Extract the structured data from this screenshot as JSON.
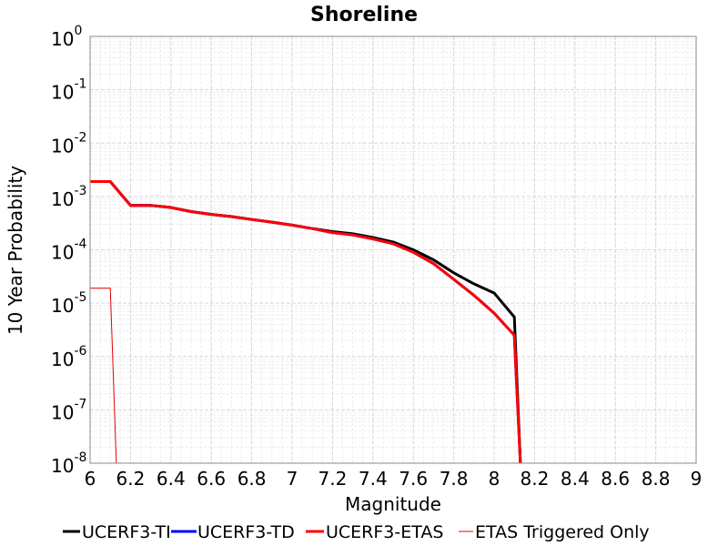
{
  "chart_data": {
    "type": "line",
    "title": "Shoreline",
    "xlabel": "Magnitude",
    "ylabel": "10 Year Probability",
    "xlim": [
      6,
      9
    ],
    "ylim": [
      1e-08,
      1
    ],
    "yscale": "log",
    "grid": true,
    "legend_position": "bottom",
    "x_ticks": [
      "6",
      "6.2",
      "6.4",
      "6.6",
      "6.8",
      "7",
      "7.2",
      "7.4",
      "7.6",
      "7.8",
      "8",
      "8.2",
      "8.4",
      "8.6",
      "8.8",
      "9"
    ],
    "y_ticks": [
      {
        "base": "10",
        "exp": "0"
      },
      {
        "base": "10",
        "exp": "-1"
      },
      {
        "base": "10",
        "exp": "-2"
      },
      {
        "base": "10",
        "exp": "-3"
      },
      {
        "base": "10",
        "exp": "-4"
      },
      {
        "base": "10",
        "exp": "-5"
      },
      {
        "base": "10",
        "exp": "-6"
      },
      {
        "base": "10",
        "exp": "-7"
      },
      {
        "base": "10",
        "exp": "-8"
      }
    ],
    "series": [
      {
        "name": "UCERF3-TI",
        "color": "#000000",
        "width": 3,
        "x": [
          6.0,
          6.1,
          6.2,
          6.3,
          6.4,
          6.5,
          6.6,
          6.7,
          6.8,
          6.9,
          7.0,
          7.1,
          7.2,
          7.3,
          7.4,
          7.5,
          7.6,
          7.7,
          7.8,
          7.9,
          8.0,
          8.1,
          8.13
        ],
        "y": [
          0.0019,
          0.0019,
          0.00068,
          0.00068,
          0.00062,
          0.00052,
          0.00046,
          0.00042,
          0.00037,
          0.00033,
          0.00029,
          0.00025,
          0.00022,
          0.0002,
          0.00017,
          0.00014,
          0.0001,
          6.5e-05,
          3.7e-05,
          2.3e-05,
          1.55e-05,
          5.5e-06,
          1e-08
        ]
      },
      {
        "name": "UCERF3-TD",
        "color": "#0000ff",
        "width": 3,
        "x": [
          6.0,
          6.1,
          6.2,
          6.3,
          6.4,
          6.5,
          6.6,
          6.7,
          6.8,
          6.9,
          7.0,
          7.1,
          7.2,
          7.3,
          7.4,
          7.5,
          7.6,
          7.7,
          7.8,
          7.9,
          8.0,
          8.1,
          8.13
        ],
        "y": [
          0.0019,
          0.0019,
          0.00068,
          0.00068,
          0.00062,
          0.00052,
          0.00046,
          0.00042,
          0.00037,
          0.00033,
          0.00029,
          0.00025,
          0.00021,
          0.00019,
          0.00016,
          0.00013,
          9e-05,
          5.5e-05,
          2.8e-05,
          1.4e-05,
          6.5e-06,
          2.5e-06,
          1e-08
        ]
      },
      {
        "name": "UCERF3-ETAS",
        "color": "#ff0000",
        "width": 3,
        "x": [
          6.0,
          6.1,
          6.2,
          6.3,
          6.4,
          6.5,
          6.6,
          6.7,
          6.8,
          6.9,
          7.0,
          7.1,
          7.2,
          7.3,
          7.4,
          7.5,
          7.6,
          7.7,
          7.8,
          7.9,
          8.0,
          8.1,
          8.13
        ],
        "y": [
          0.0019,
          0.0019,
          0.00068,
          0.00068,
          0.00062,
          0.00052,
          0.00046,
          0.00042,
          0.00037,
          0.00033,
          0.00029,
          0.00025,
          0.00021,
          0.00019,
          0.00016,
          0.00013,
          9e-05,
          5.5e-05,
          2.8e-05,
          1.4e-05,
          6.5e-06,
          2.5e-06,
          1e-08
        ]
      },
      {
        "name": "ETAS Triggered Only",
        "color": "#e00000",
        "width": 1,
        "x": [
          6.0,
          6.1,
          6.13
        ],
        "y": [
          1.9e-05,
          1.9e-05,
          1e-08
        ]
      }
    ]
  }
}
